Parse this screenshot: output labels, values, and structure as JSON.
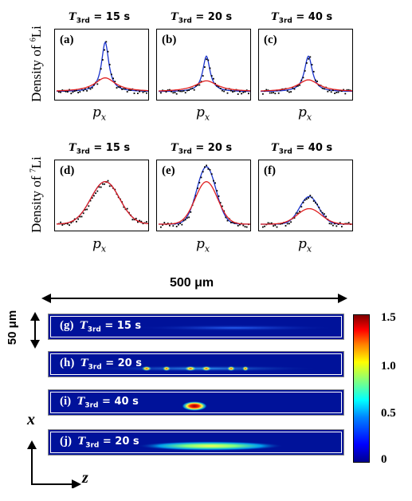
{
  "density_rows": {
    "li6": {
      "ylabel_main": "Density of ",
      "ylabel_sup": "6",
      "ylabel_tail": "Li"
    },
    "li7": {
      "ylabel_main": "Density of ",
      "ylabel_sup": "7",
      "ylabel_tail": "Li"
    }
  },
  "time_titles": {
    "t1": "15 s",
    "t2": "20 s",
    "t3": "40 s",
    "symbol": "T",
    "sub": "3rd",
    "eq": " = "
  },
  "xlabel": {
    "main": "p",
    "sub": "x"
  },
  "panels": {
    "a": "(a)",
    "b": "(b)",
    "c": "(c)",
    "d": "(d)",
    "e": "(e)",
    "f": "(f)"
  },
  "scale": {
    "width_label": "500 μm",
    "height_label": "50 μm"
  },
  "strips": {
    "g": {
      "letter": "(g)",
      "time": "15 s"
    },
    "h": {
      "letter": "(h)",
      "time": "20 s"
    },
    "i": {
      "letter": "(i)",
      "time": "40 s"
    },
    "j": {
      "letter": "(j)",
      "time": "20 s"
    }
  },
  "axes": {
    "x": "x",
    "z": "z"
  },
  "colorbar": {
    "ticks": [
      "1.5",
      "1.0",
      "0.5",
      "0"
    ]
  },
  "colors": {
    "fit_narrow": "#1a33cc",
    "fit_broad": "#e02020",
    "points": "#000000",
    "image_bg": "#00129a"
  },
  "chart_data": [
    {
      "type": "scatter",
      "panel": "(a)",
      "xlabel": "p_x",
      "ylabel": "Density of 6Li",
      "series": [
        {
          "color": "blue",
          "shape": "narrow peak",
          "peak": 1.0
        },
        {
          "color": "red",
          "shape": "broad peak",
          "peak": 0.28
        }
      ]
    },
    {
      "type": "scatter",
      "panel": "(b)",
      "xlabel": "p_x",
      "ylabel": "Density of 6Li",
      "series": [
        {
          "color": "blue",
          "shape": "narrow peak",
          "peak": 0.72
        },
        {
          "color": "red",
          "shape": "broad peak",
          "peak": 0.22
        }
      ]
    },
    {
      "type": "scatter",
      "panel": "(c)",
      "xlabel": "p_x",
      "ylabel": "Density of 6Li",
      "series": [
        {
          "color": "blue",
          "shape": "narrow peak",
          "peak": 0.72
        },
        {
          "color": "red",
          "shape": "broad peak",
          "peak": 0.24
        }
      ]
    },
    {
      "type": "scatter",
      "panel": "(d)",
      "xlabel": "p_x",
      "ylabel": "Density of 7Li",
      "series": [
        {
          "color": "blue",
          "shape": "peak",
          "peak": 0.86
        },
        {
          "color": "red",
          "shape": "peak",
          "peak": 0.86
        }
      ]
    },
    {
      "type": "scatter",
      "panel": "(e)",
      "xlabel": "p_x",
      "ylabel": "Density of 7Li",
      "series": [
        {
          "color": "blue",
          "shape": "peak",
          "peak": 1.0
        },
        {
          "color": "red",
          "shape": "peak",
          "peak": 0.74
        }
      ]
    },
    {
      "type": "scatter",
      "panel": "(f)",
      "xlabel": "p_x",
      "ylabel": "Density of 7Li",
      "series": [
        {
          "color": "blue",
          "shape": "peak",
          "peak": 0.48
        },
        {
          "color": "red",
          "shape": "peak",
          "peak": 0.27
        }
      ]
    }
  ]
}
